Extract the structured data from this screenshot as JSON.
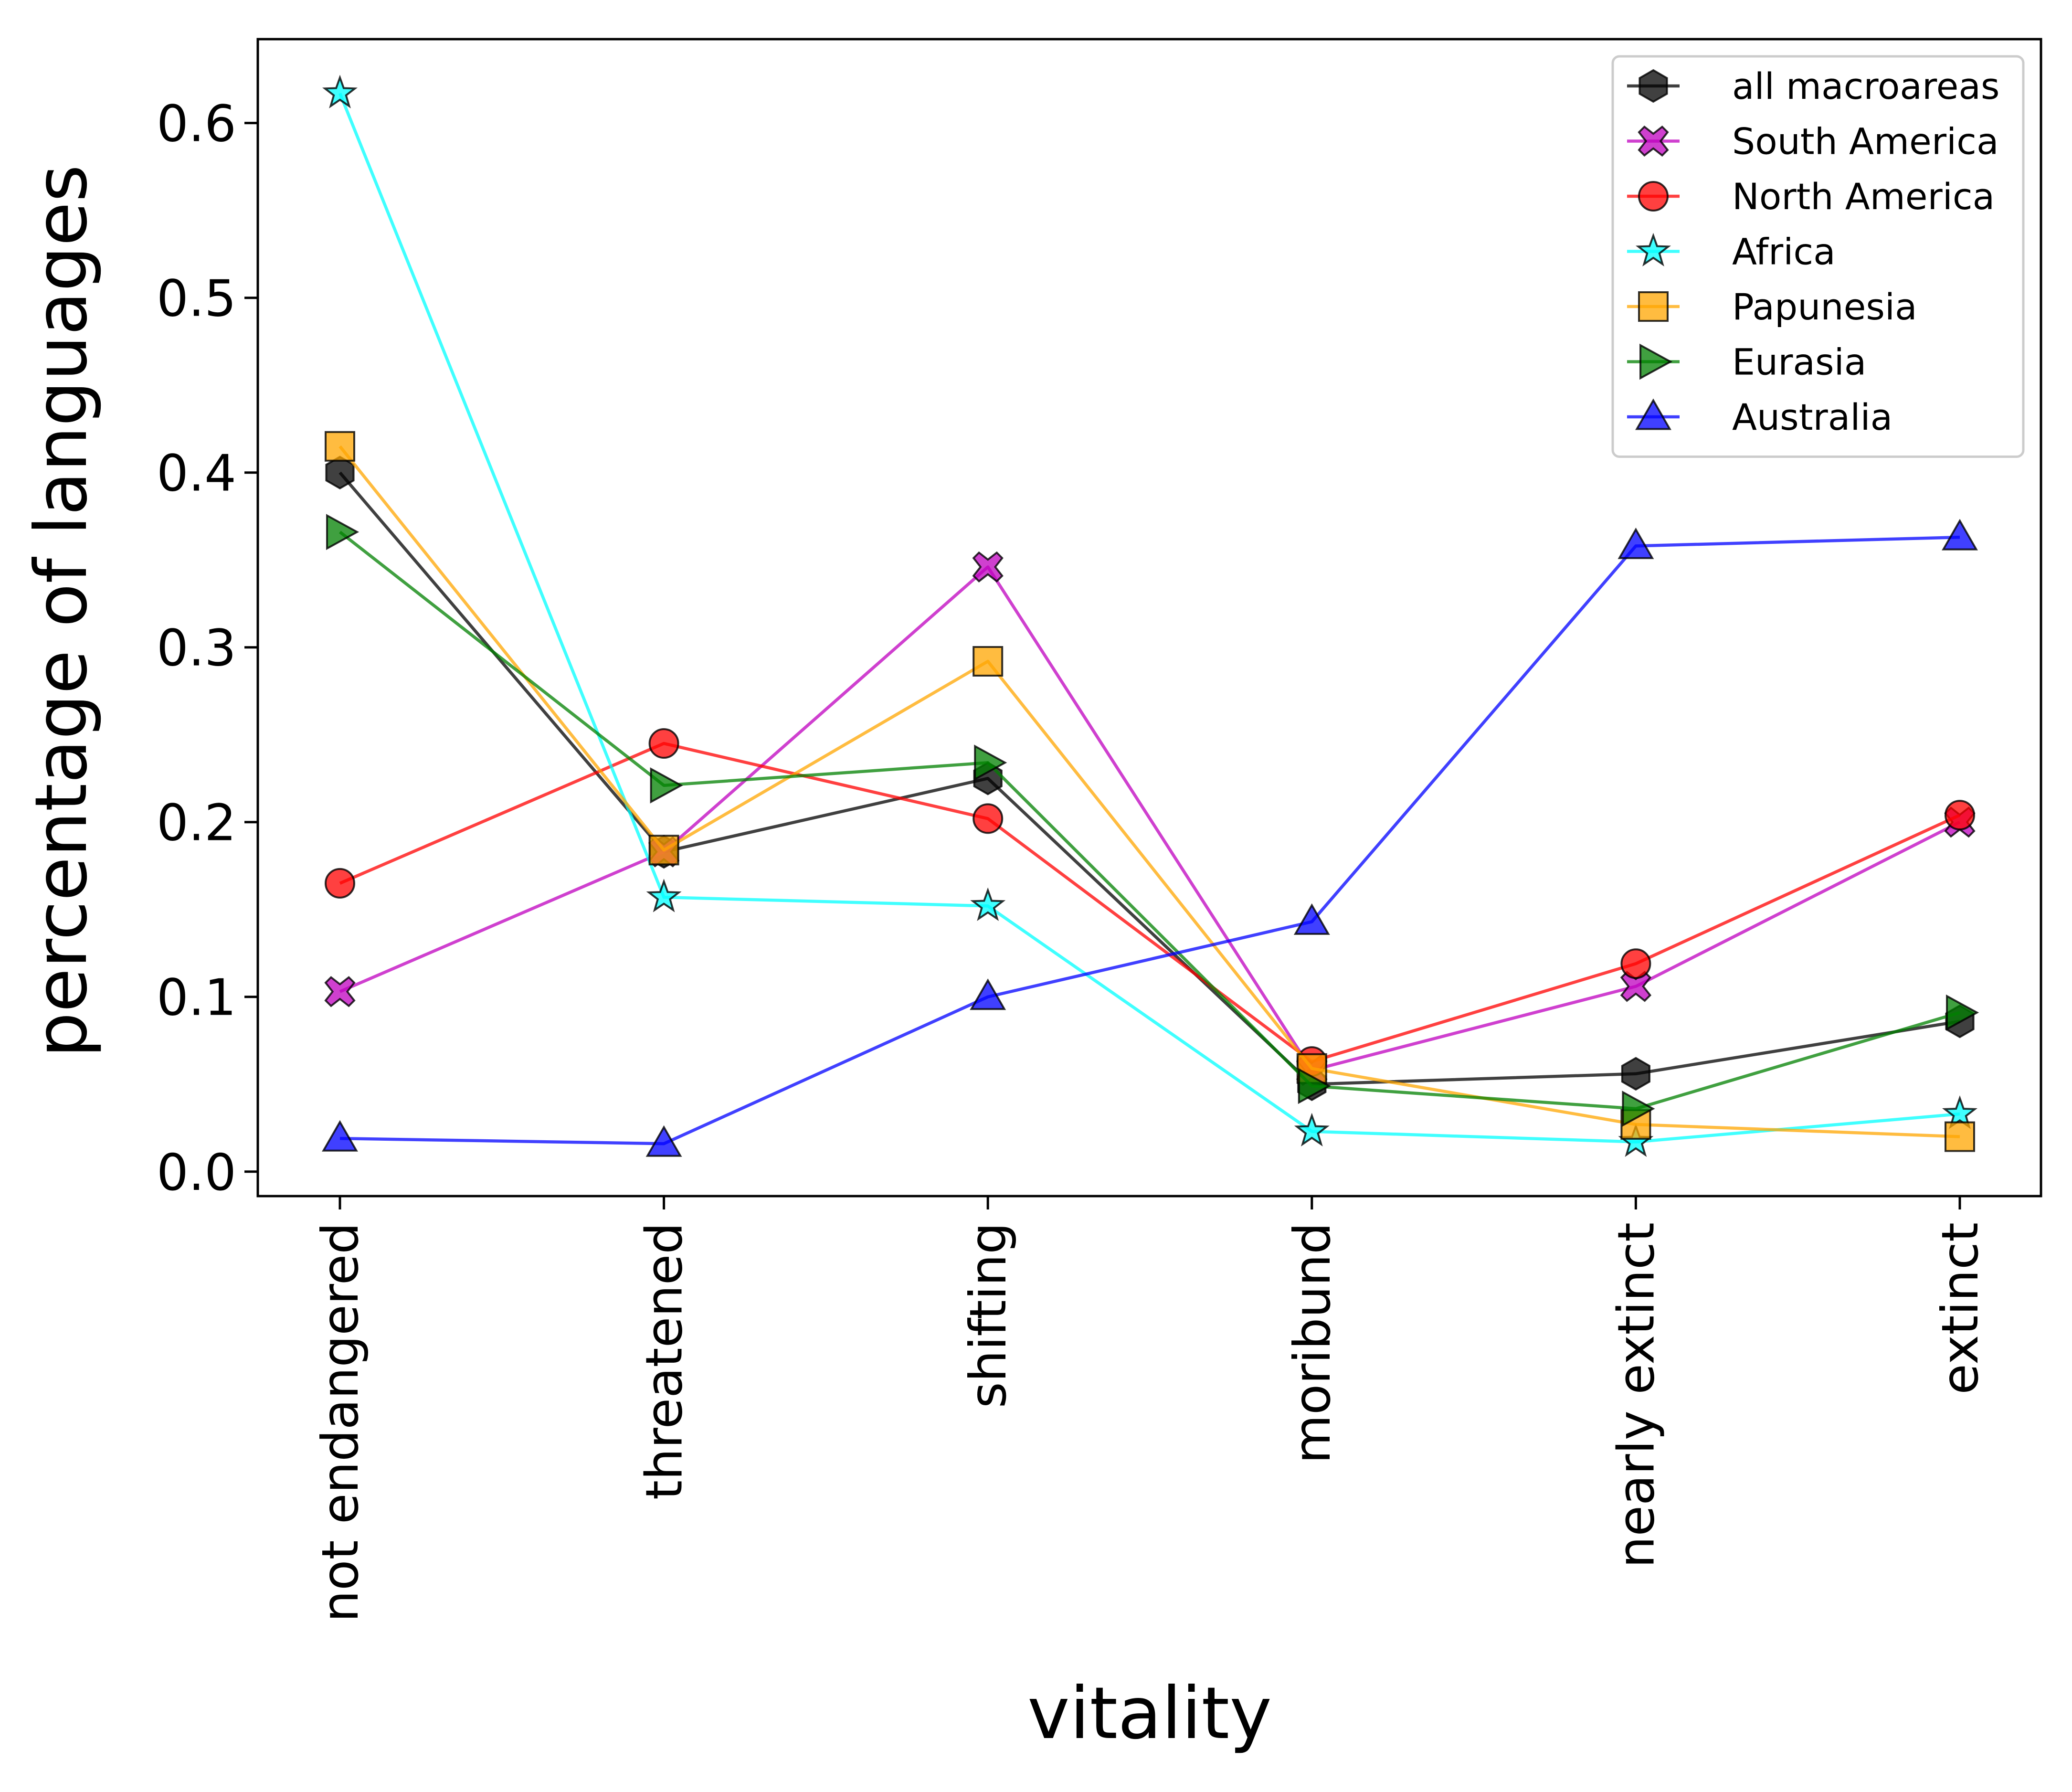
{
  "chart_data": {
    "type": "line",
    "xlabel": "vitality",
    "ylabel": "percentage of languages",
    "categories": [
      "not endangered",
      "threatened",
      "shifting",
      "moribund",
      "nearly extinct",
      "extinct"
    ],
    "ylim": [
      -0.014,
      0.648
    ],
    "yticks": [
      "0.0",
      "0.1",
      "0.2",
      "0.3",
      "0.4",
      "0.5",
      "0.6"
    ],
    "grid": false,
    "legend_position": "top-right",
    "series": [
      {
        "name": "all macroareas",
        "color": "#000000",
        "marker": "hexagon",
        "values": [
          0.4,
          0.183,
          0.225,
          0.05,
          0.056,
          0.086
        ]
      },
      {
        "name": "South America",
        "color": "#bf00bf",
        "marker": "x-filled",
        "values": [
          0.103,
          0.183,
          0.346,
          0.058,
          0.106,
          0.2
        ]
      },
      {
        "name": "North America",
        "color": "#ff0000",
        "marker": "circle",
        "values": [
          0.165,
          0.245,
          0.202,
          0.063,
          0.119,
          0.204
        ]
      },
      {
        "name": "Africa",
        "color": "#00ffff",
        "marker": "star",
        "values": [
          0.617,
          0.157,
          0.152,
          0.023,
          0.017,
          0.033
        ]
      },
      {
        "name": "Papunesia",
        "color": "#ffa500",
        "marker": "square",
        "values": [
          0.415,
          0.184,
          0.292,
          0.059,
          0.027,
          0.02
        ]
      },
      {
        "name": "Eurasia",
        "color": "#008000",
        "marker": "triangle-right",
        "values": [
          0.366,
          0.221,
          0.234,
          0.049,
          0.036,
          0.091
        ]
      },
      {
        "name": "Australia",
        "color": "#0000ff",
        "marker": "triangle-up",
        "values": [
          0.019,
          0.016,
          0.1,
          0.143,
          0.358,
          0.363
        ]
      }
    ]
  }
}
